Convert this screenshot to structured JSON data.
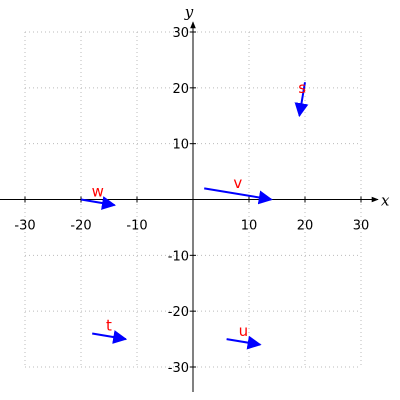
{
  "chart_data": {
    "type": "vector-field",
    "title": "",
    "xlabel": "x",
    "ylabel": "y",
    "xlim": [
      -30,
      30
    ],
    "ylim": [
      -30,
      30
    ],
    "x_ticks": [
      -30,
      -20,
      -10,
      10,
      20,
      30
    ],
    "y_ticks": [
      -30,
      -20,
      -10,
      10,
      20,
      30
    ],
    "grid": true,
    "vector_color": "#0000ff",
    "label_color": "#ff0000",
    "vectors": [
      {
        "name": "v",
        "x0": 2,
        "y0": 2,
        "x1": 14,
        "y1": 0
      },
      {
        "name": "s",
        "x0": 20,
        "y0": 21,
        "x1": 19,
        "y1": 15
      },
      {
        "name": "w",
        "x0": -20,
        "y0": 0,
        "x1": -14,
        "y1": -1
      },
      {
        "name": "t",
        "x0": -18,
        "y0": -24,
        "x1": -12,
        "y1": -25
      },
      {
        "name": "u",
        "x0": 6,
        "y0": -25,
        "x1": 12,
        "y1": -26
      }
    ]
  }
}
